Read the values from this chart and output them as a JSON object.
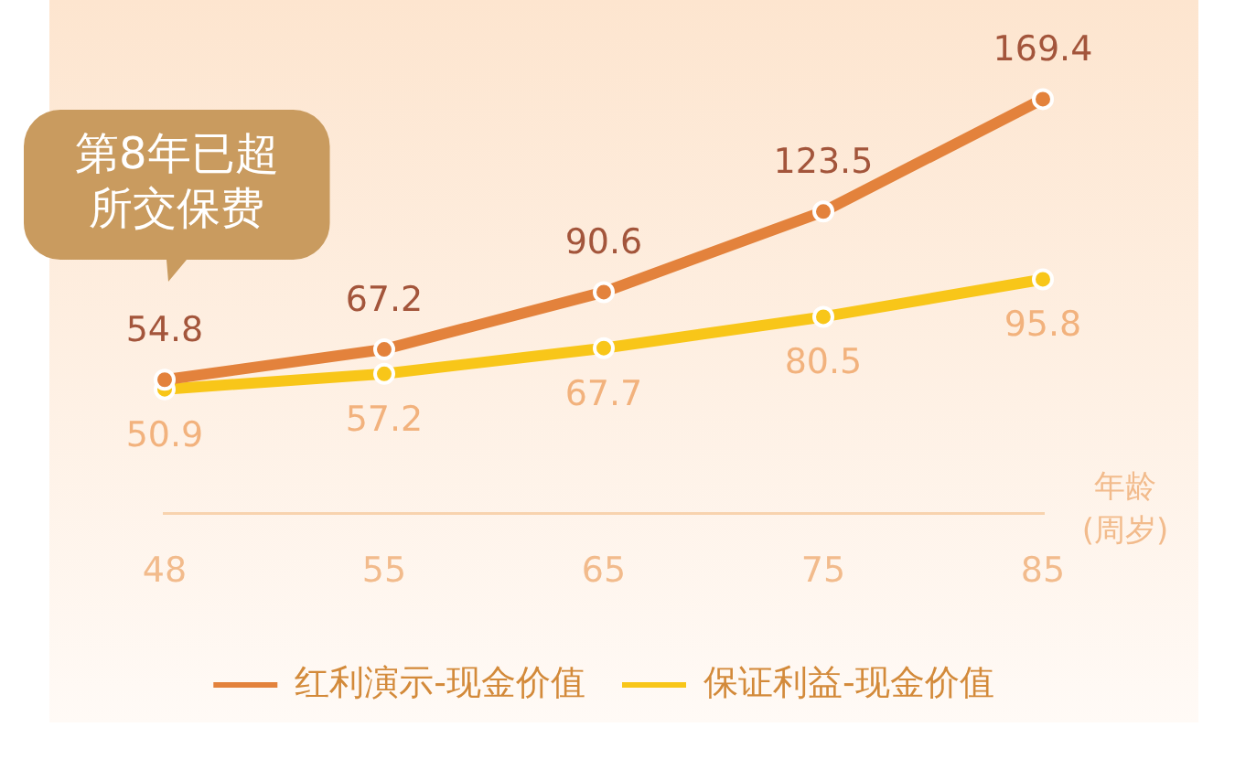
{
  "chart_data": {
    "type": "line",
    "categories": [
      "48",
      "55",
      "65",
      "75",
      "85"
    ],
    "xlabel": "年龄(周岁)",
    "series": [
      {
        "name": "红利演示-现金价值",
        "color": "#e3823c",
        "values": [
          54.8,
          67.2,
          90.6,
          123.5,
          169.4
        ]
      },
      {
        "name": "保证利益-现金价值",
        "color": "#f8c619",
        "values": [
          50.9,
          57.2,
          67.7,
          80.5,
          95.8
        ]
      }
    ],
    "tick_labels": "x",
    "data_labels": true,
    "marker": "circle",
    "line_style": "solid",
    "legend": "bottom",
    "annotations": [
      "第8年已超所交保费"
    ]
  }
}
